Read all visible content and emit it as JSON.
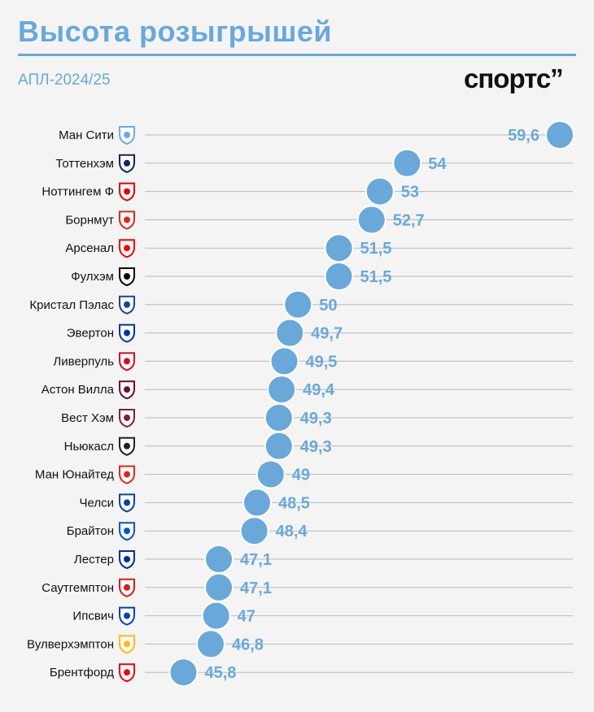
{
  "title": "Высота розыгрышей",
  "subtitle": "АПЛ-2024/25",
  "brand": "спортс’’",
  "colors": {
    "accent": "#6aa8da",
    "gridline": "#b9b9b9",
    "text": "#111111",
    "background": "#f4f4f4"
  },
  "chart_data": {
    "type": "scatter",
    "title": "Высота розыгрышей",
    "subtitle": "АПЛ-2024/25",
    "xlabel": "",
    "ylabel": "",
    "xlim": [
      45.1,
      59.6
    ],
    "grid": true,
    "categories": [
      "Ман Сити",
      "Тоттенхэм",
      "Ноттингем Ф",
      "Борнмут",
      "Арсенал",
      "Фулхэм",
      "Кристал Пэлас",
      "Эвертон",
      "Ливерпуль",
      "Астон Вилла",
      "Вест Хэм",
      "Ньюкасл",
      "Ман Юнайтед",
      "Челси",
      "Брайтон",
      "Лестер",
      "Саутгемптон",
      "Ипсвич",
      "Вулверхэмптон",
      "Брентфорд"
    ],
    "values": [
      59.6,
      54,
      53,
      52.7,
      51.5,
      51.5,
      50,
      49.7,
      49.5,
      49.4,
      49.3,
      49.3,
      49,
      48.5,
      48.4,
      47.1,
      47.1,
      47,
      46.8,
      45.8
    ],
    "value_labels": [
      "59,6",
      "54",
      "53",
      "52,7",
      "51,5",
      "51,5",
      "50",
      "49,7",
      "49,5",
      "49,4",
      "49,3",
      "49,3",
      "49",
      "48,5",
      "48,4",
      "47,1",
      "47,1",
      "47",
      "46,8",
      "45,8"
    ],
    "crest_colors": [
      "#6cabdd",
      "#132257",
      "#dd0000",
      "#da291c",
      "#ef0107",
      "#000000",
      "#1b458f",
      "#003399",
      "#c8102e",
      "#670e36",
      "#7a263a",
      "#241f20",
      "#da291c",
      "#034694",
      "#0057b8",
      "#003090",
      "#d71920",
      "#0044a9",
      "#fdb913",
      "#e30613"
    ]
  }
}
